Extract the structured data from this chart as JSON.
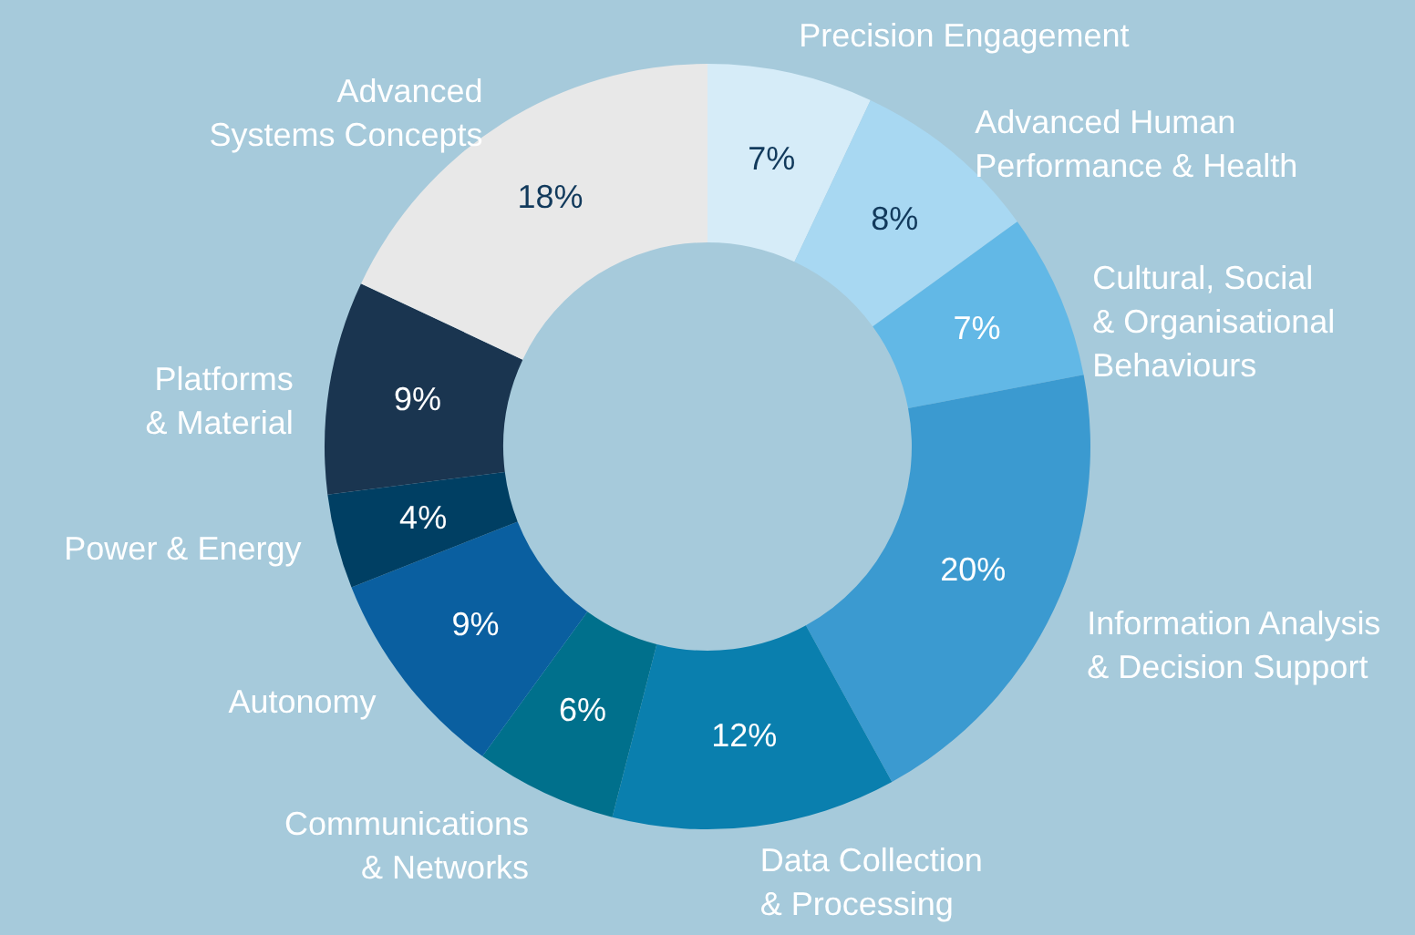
{
  "chart_data": {
    "type": "donut",
    "categories": [
      "Precision Engagement",
      "Advanced Human\nPerformance & Health",
      "Cultural, Social\n& Organisational\nBehaviours",
      "Information Analysis\n& Decision Support",
      "Data Collection\n& Processing",
      "Communications\n& Networks",
      "Autonomy",
      "Power & Energy",
      "Platforms\n& Material",
      "Advanced\nSystems Concepts"
    ],
    "values": [
      7,
      8,
      7,
      20,
      12,
      6,
      9,
      4,
      9,
      18
    ],
    "value_labels": [
      "7%",
      "8%",
      "7%",
      "20%",
      "12%",
      "6%",
      "9%",
      "4%",
      "9%",
      "18%"
    ],
    "colors": [
      "#d6ecf8",
      "#a8d8f2",
      "#62b8e6",
      "#3b9ad0",
      "#0a7fae",
      "#00708c",
      "#0a5fa0",
      "#003f63",
      "#1a3550",
      "#e8e8e8"
    ]
  }
}
